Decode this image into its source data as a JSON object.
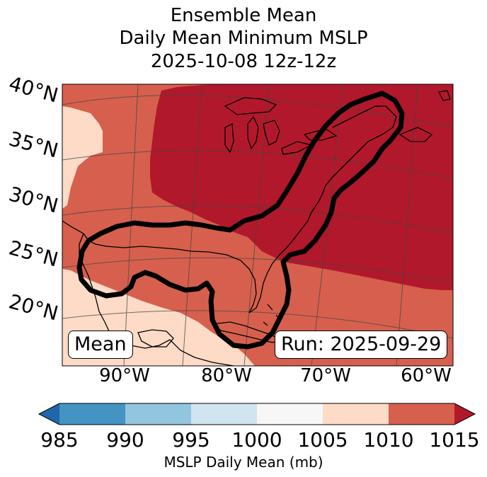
{
  "title": {
    "line1": "Ensemble Mean",
    "line2": "Daily Mean Minimum MSLP",
    "line3": "2025-10-08 12z-12z"
  },
  "lat_labels": [
    "40°N",
    "35°N",
    "30°N",
    "25°N",
    "20°N"
  ],
  "lon_labels": [
    "90°W",
    "80°W",
    "70°W",
    "60°W"
  ],
  "boxes": {
    "mean": "Mean",
    "run": "Run: 2025-09-29"
  },
  "colorbar": {
    "ticks": [
      "985",
      "990",
      "995",
      "1000",
      "1005",
      "1010",
      "1015"
    ],
    "label": "MSLP Daily Mean (mb)",
    "colors": [
      "#2166ac",
      "#4393c3",
      "#92c5de",
      "#d1e5f0",
      "#f7f7f7",
      "#fddbc7",
      "#d6604d",
      "#b2182b"
    ]
  },
  "fields": {
    "level_1005_1010_color": "#fddbc7",
    "level_1010_1015_color": "#d6604d",
    "level_above_1015_color": "#b2182b",
    "outline_color": "#000000"
  }
}
